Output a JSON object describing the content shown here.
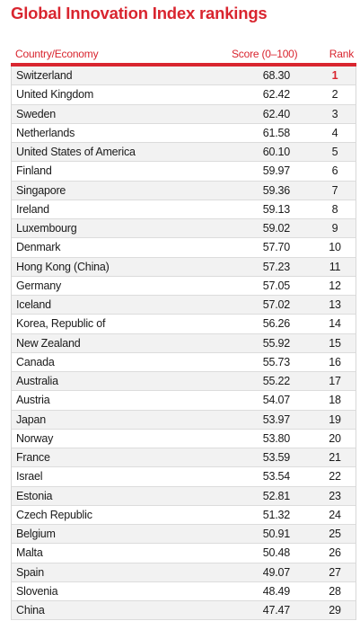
{
  "title": "Global Innovation Index rankings",
  "colors": {
    "accent": "#d9252f",
    "title_text": "#d9252f",
    "header_text": "#d9252f",
    "top_rank": "#d9252f",
    "row_shade": "#f2f2f2"
  },
  "chart_data": {
    "type": "table",
    "title": "Global Innovation Index rankings",
    "columns": [
      "Country/Economy",
      "Score (0–100)",
      "Rank"
    ],
    "rows": [
      {
        "country": "Switzerland",
        "score": "68.30",
        "rank": "1"
      },
      {
        "country": "United Kingdom",
        "score": "62.42",
        "rank": "2"
      },
      {
        "country": "Sweden",
        "score": "62.40",
        "rank": "3"
      },
      {
        "country": "Netherlands",
        "score": "61.58",
        "rank": "4"
      },
      {
        "country": "United States of America",
        "score": "60.10",
        "rank": "5"
      },
      {
        "country": "Finland",
        "score": "59.97",
        "rank": "6"
      },
      {
        "country": "Singapore",
        "score": "59.36",
        "rank": "7"
      },
      {
        "country": "Ireland",
        "score": "59.13",
        "rank": "8"
      },
      {
        "country": "Luxembourg",
        "score": "59.02",
        "rank": "9"
      },
      {
        "country": "Denmark",
        "score": "57.70",
        "rank": "10"
      },
      {
        "country": "Hong Kong (China)",
        "score": "57.23",
        "rank": "11"
      },
      {
        "country": "Germany",
        "score": "57.05",
        "rank": "12"
      },
      {
        "country": "Iceland",
        "score": "57.02",
        "rank": "13"
      },
      {
        "country": "Korea, Republic of",
        "score": "56.26",
        "rank": "14"
      },
      {
        "country": "New Zealand",
        "score": "55.92",
        "rank": "15"
      },
      {
        "country": "Canada",
        "score": "55.73",
        "rank": "16"
      },
      {
        "country": "Australia",
        "score": "55.22",
        "rank": "17"
      },
      {
        "country": "Austria",
        "score": "54.07",
        "rank": "18"
      },
      {
        "country": "Japan",
        "score": "53.97",
        "rank": "19"
      },
      {
        "country": "Norway",
        "score": "53.80",
        "rank": "20"
      },
      {
        "country": "France",
        "score": "53.59",
        "rank": "21"
      },
      {
        "country": "Israel",
        "score": "53.54",
        "rank": "22"
      },
      {
        "country": "Estonia",
        "score": "52.81",
        "rank": "23"
      },
      {
        "country": "Czech Republic",
        "score": "51.32",
        "rank": "24"
      },
      {
        "country": "Belgium",
        "score": "50.91",
        "rank": "25"
      },
      {
        "country": "Malta",
        "score": "50.48",
        "rank": "26"
      },
      {
        "country": "Spain",
        "score": "49.07",
        "rank": "27"
      },
      {
        "country": "Slovenia",
        "score": "48.49",
        "rank": "28"
      },
      {
        "country": "China",
        "score": "47.47",
        "rank": "29"
      }
    ]
  }
}
